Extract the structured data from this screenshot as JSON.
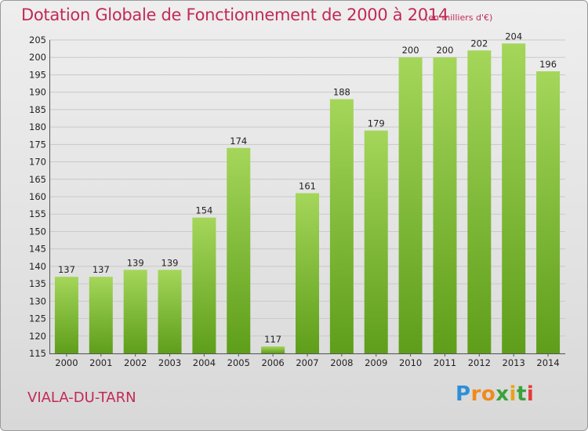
{
  "title": "Dotation Globale de Fonctionnement de 2000 à 2014",
  "subtitle": "(en milliers d'€)",
  "place": "VIALA-DU-TARN",
  "logo": {
    "letters": [
      "P",
      "r",
      "o",
      "x",
      "i",
      "t",
      "i"
    ],
    "colors": [
      "#2f8fd6",
      "#f08a1c",
      "#f08a1c",
      "#3aa23a",
      "#e8a21a",
      "#3aa23a",
      "#e33b3b"
    ]
  },
  "colors": {
    "title": "#c22a55",
    "bar_light": "#a4d65a",
    "bar_dark": "#5e9e1a"
  },
  "chart_data": {
    "type": "bar",
    "categories": [
      "2000",
      "2001",
      "2002",
      "2003",
      "2004",
      "2005",
      "2006",
      "2007",
      "2008",
      "2009",
      "2010",
      "2011",
      "2012",
      "2013",
      "2014"
    ],
    "values": [
      137,
      137,
      139,
      139,
      154,
      174,
      117,
      161,
      188,
      179,
      200,
      200,
      202,
      204,
      196
    ],
    "value_labels": [
      "137",
      "137",
      "139",
      "139",
      "154",
      "174",
      "117",
      "161",
      "188",
      "179",
      "200",
      "200",
      "202",
      "204",
      "196"
    ],
    "ylim": [
      115,
      205
    ],
    "yticks": [
      "115",
      "120",
      "125",
      "130",
      "135",
      "140",
      "145",
      "150",
      "155",
      "160",
      "165",
      "170",
      "175",
      "180",
      "185",
      "190",
      "195",
      "200",
      "205"
    ],
    "grid": true
  }
}
